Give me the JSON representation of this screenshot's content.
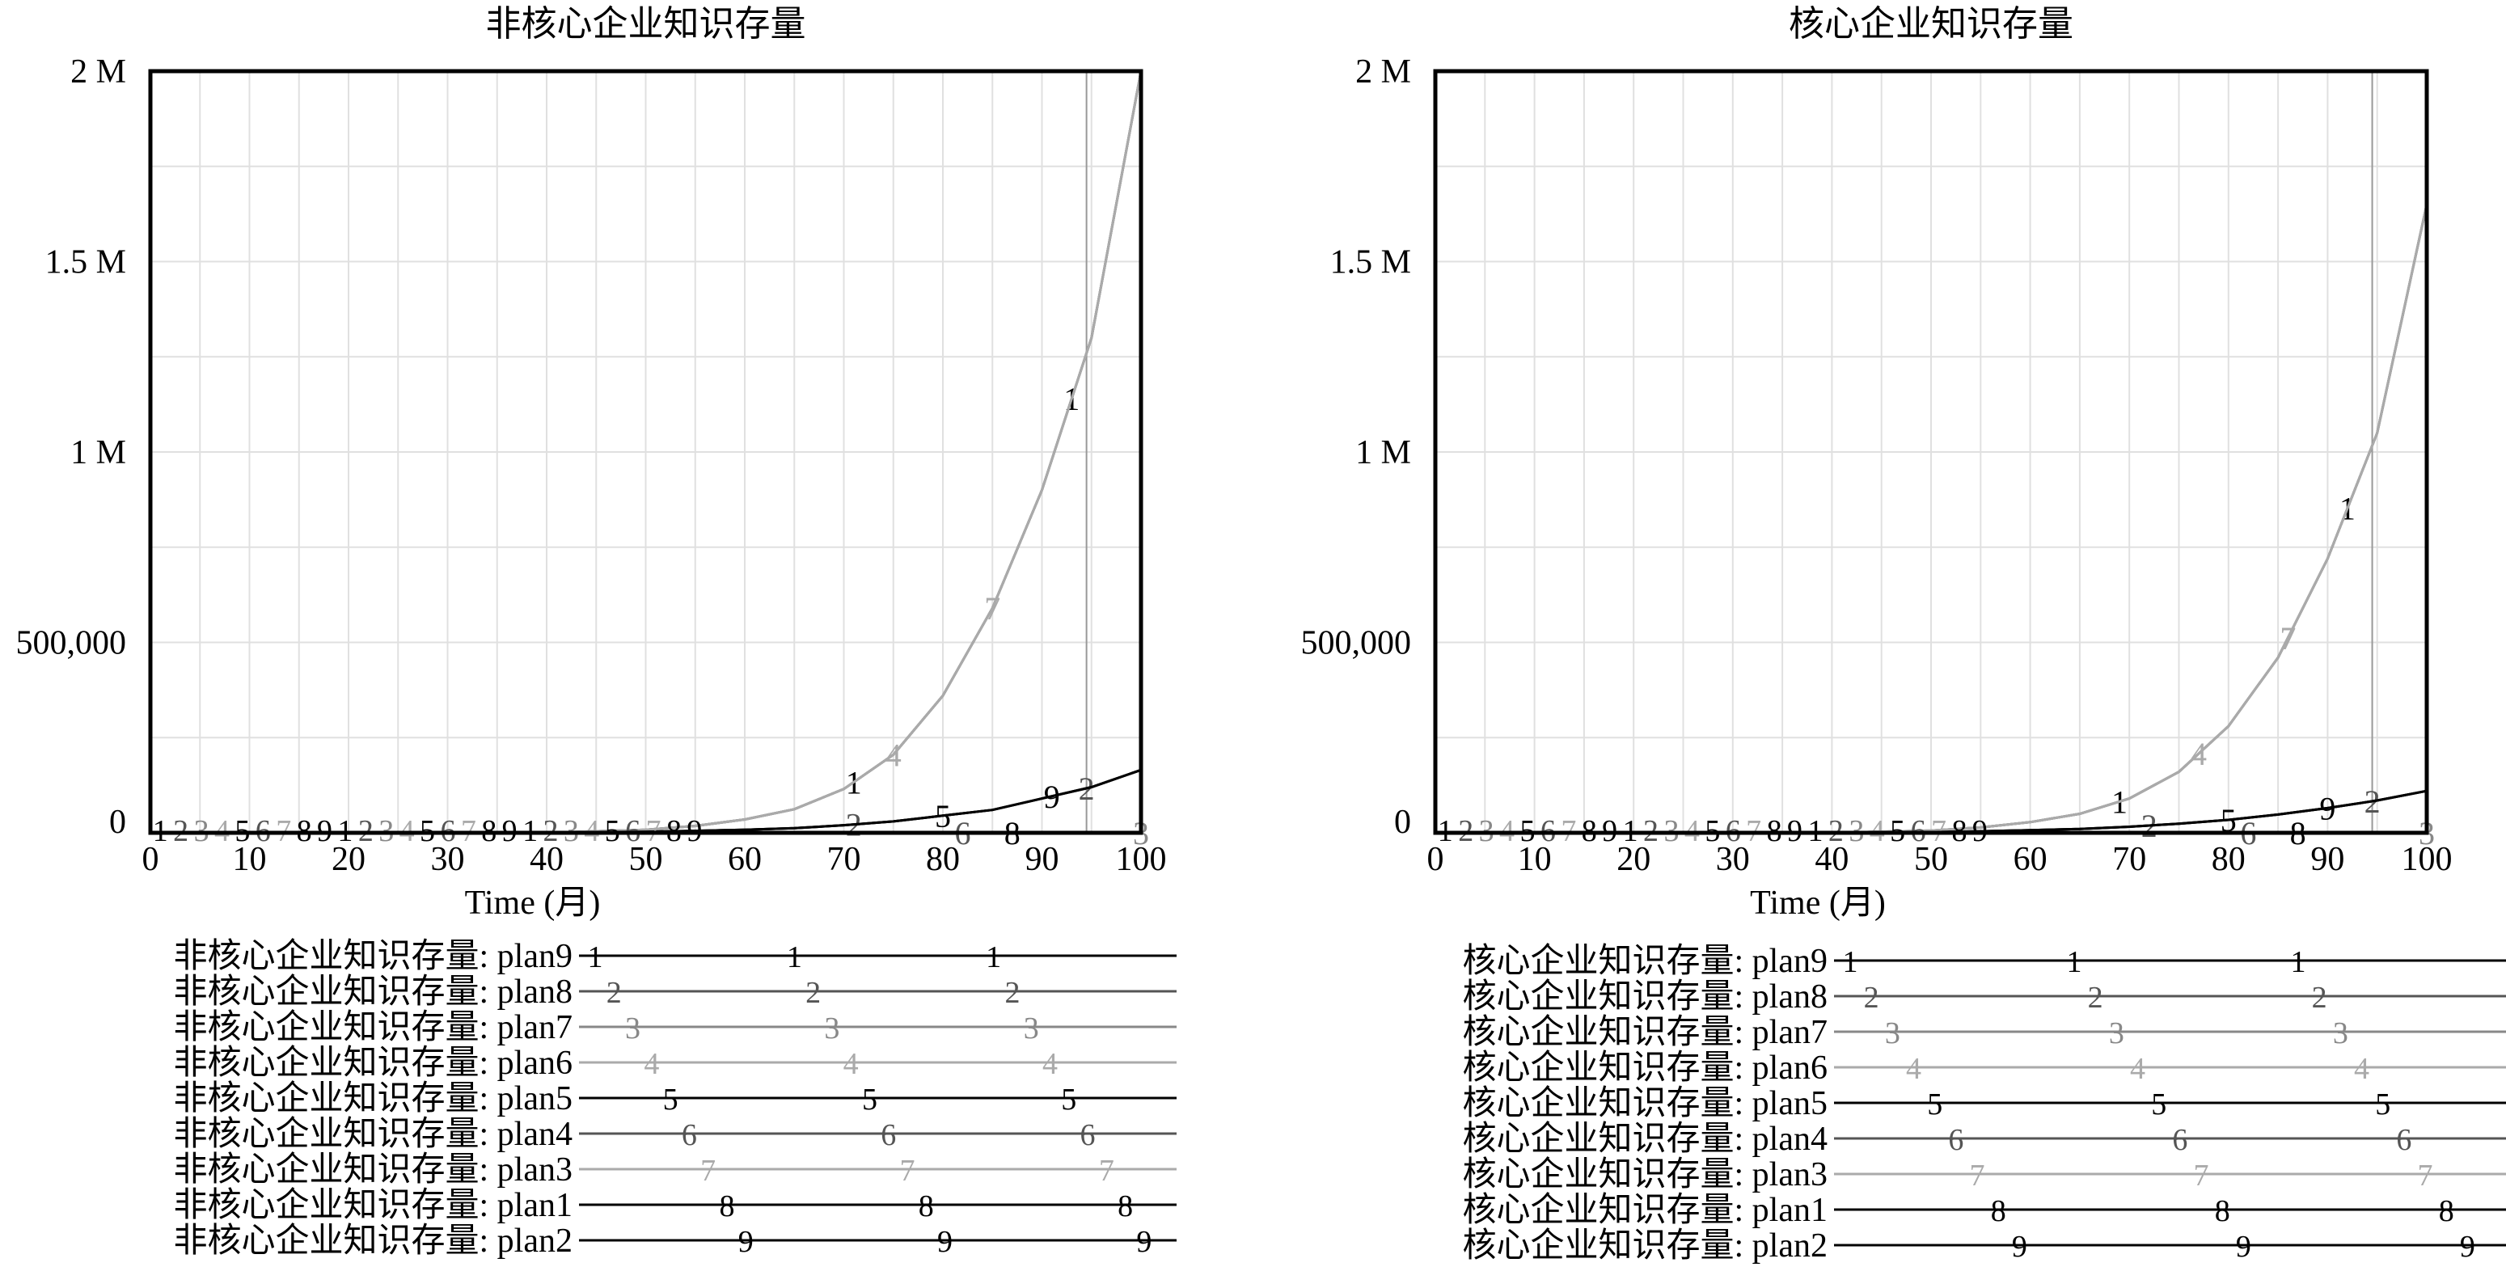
{
  "colors": {
    "black": "#000000",
    "dark_gray": "#555555",
    "mid_gray": "#888888",
    "light_gray": "#aaaaaa",
    "grid": "#e0e0e0",
    "marker_line": "#999999"
  },
  "chart_data": [
    {
      "type": "line",
      "title": "非核心企业知识存量",
      "xlabel": "Time (月)",
      "ylabel": "",
      "xlim": [
        0,
        100
      ],
      "ylim": [
        0,
        2000000
      ],
      "x_ticks": [
        0,
        10,
        20,
        30,
        40,
        50,
        60,
        70,
        80,
        90,
        100
      ],
      "y_ticks": [
        0,
        500000,
        1000000,
        1500000,
        2000000
      ],
      "y_tick_labels": [
        "0",
        "500,000",
        "1 M",
        "1.5 M",
        "2 M"
      ],
      "grid": true,
      "time_marker": 94.5,
      "x": [
        0,
        10,
        20,
        30,
        40,
        50,
        55,
        60,
        65,
        70,
        75,
        80,
        85,
        90,
        95,
        100
      ],
      "series": [
        {
          "marker": "1",
          "values": [
            0,
            0,
            0,
            0,
            0,
            8000,
            18000,
            35000,
            62000,
            115000,
            205000,
            360000,
            590000,
            900000,
            1300000,
            2000000
          ]
        },
        {
          "marker": "2",
          "values": [
            0,
            0,
            0,
            0,
            0,
            3000,
            5000,
            8000,
            12000,
            20000,
            30000,
            45000,
            60000,
            90000,
            120000,
            165000
          ]
        },
        {
          "marker": "3",
          "values": [
            0,
            0,
            0,
            0,
            0,
            0,
            0,
            0,
            0,
            0,
            0,
            0,
            0,
            0,
            0,
            0
          ]
        },
        {
          "marker": "4",
          "values": [
            0,
            0,
            0,
            0,
            0,
            8000,
            18000,
            35000,
            62000,
            115000,
            205000,
            360000,
            590000,
            900000,
            1300000,
            2000000
          ]
        },
        {
          "marker": "5",
          "values": [
            0,
            0,
            0,
            0,
            0,
            3000,
            5000,
            8000,
            12000,
            20000,
            30000,
            45000,
            60000,
            90000,
            120000,
            165000
          ]
        },
        {
          "marker": "6",
          "values": [
            0,
            0,
            0,
            0,
            0,
            0,
            0,
            0,
            0,
            0,
            0,
            0,
            0,
            0,
            0,
            0
          ]
        },
        {
          "marker": "7",
          "values": [
            0,
            0,
            0,
            0,
            0,
            8000,
            18000,
            35000,
            62000,
            115000,
            205000,
            360000,
            590000,
            900000,
            1300000,
            2000000
          ]
        },
        {
          "marker": "8",
          "values": [
            0,
            0,
            0,
            0,
            0,
            0,
            0,
            0,
            0,
            0,
            0,
            0,
            0,
            0,
            0,
            0
          ]
        },
        {
          "marker": "9",
          "values": [
            0,
            0,
            0,
            0,
            0,
            3000,
            5000,
            8000,
            12000,
            20000,
            30000,
            45000,
            60000,
            90000,
            120000,
            165000
          ]
        }
      ],
      "legend": [
        {
          "label": "非核心企业知识存量: plan9",
          "marker": "1",
          "color": "#000000"
        },
        {
          "label": "非核心企业知识存量: plan8",
          "marker": "2",
          "color": "#555555"
        },
        {
          "label": "非核心企业知识存量: plan7",
          "marker": "3",
          "color": "#888888"
        },
        {
          "label": "非核心企业知识存量: plan6",
          "marker": "4",
          "color": "#aaaaaa"
        },
        {
          "label": "非核心企业知识存量: plan5",
          "marker": "5",
          "color": "#000000"
        },
        {
          "label": "非核心企业知识存量: plan4",
          "marker": "6",
          "color": "#555555"
        },
        {
          "label": "非核心企业知识存量: plan3",
          "marker": "7",
          "color": "#aaaaaa"
        },
        {
          "label": "非核心企业知识存量: plan1",
          "marker": "8",
          "color": "#000000"
        },
        {
          "label": "非核心企业知识存量: plan2",
          "marker": "9",
          "color": "#000000"
        }
      ]
    },
    {
      "type": "line",
      "title": "核心企业知识存量",
      "xlabel": "Time (月)",
      "ylabel": "",
      "xlim": [
        0,
        100
      ],
      "ylim": [
        0,
        2000000
      ],
      "x_ticks": [
        0,
        10,
        20,
        30,
        40,
        50,
        60,
        70,
        80,
        90,
        100
      ],
      "y_ticks": [
        0,
        500000,
        1000000,
        1500000,
        2000000
      ],
      "y_tick_labels": [
        "0",
        "500,000",
        "1 M",
        "1.5 M",
        "2 M"
      ],
      "grid": true,
      "time_marker": 94.5,
      "x": [
        0,
        10,
        20,
        30,
        40,
        50,
        55,
        60,
        65,
        70,
        75,
        80,
        85,
        90,
        95,
        100
      ],
      "series": [
        {
          "marker": "1",
          "values": [
            0,
            0,
            0,
            0,
            0,
            6000,
            14000,
            28000,
            50000,
            90000,
            160000,
            280000,
            460000,
            720000,
            1050000,
            1650000
          ]
        },
        {
          "marker": "2",
          "values": [
            0,
            0,
            0,
            0,
            0,
            2000,
            4000,
            7000,
            10000,
            16000,
            24000,
            34000,
            48000,
            65000,
            85000,
            110000
          ]
        },
        {
          "marker": "3",
          "values": [
            0,
            0,
            0,
            0,
            0,
            0,
            0,
            0,
            0,
            0,
            0,
            0,
            0,
            0,
            0,
            0
          ]
        },
        {
          "marker": "4",
          "values": [
            0,
            0,
            0,
            0,
            0,
            6000,
            14000,
            28000,
            50000,
            90000,
            160000,
            280000,
            460000,
            720000,
            1050000,
            1650000
          ]
        },
        {
          "marker": "5",
          "values": [
            0,
            0,
            0,
            0,
            0,
            2000,
            4000,
            7000,
            10000,
            16000,
            24000,
            34000,
            48000,
            65000,
            85000,
            110000
          ]
        },
        {
          "marker": "6",
          "values": [
            0,
            0,
            0,
            0,
            0,
            0,
            0,
            0,
            0,
            0,
            0,
            0,
            0,
            0,
            0,
            0
          ]
        },
        {
          "marker": "7",
          "values": [
            0,
            0,
            0,
            0,
            0,
            6000,
            14000,
            28000,
            50000,
            90000,
            160000,
            280000,
            460000,
            720000,
            1050000,
            1650000
          ]
        },
        {
          "marker": "8",
          "values": [
            0,
            0,
            0,
            0,
            0,
            0,
            0,
            0,
            0,
            0,
            0,
            0,
            0,
            0,
            0,
            0
          ]
        },
        {
          "marker": "9",
          "values": [
            0,
            0,
            0,
            0,
            0,
            2000,
            4000,
            7000,
            10000,
            16000,
            24000,
            34000,
            48000,
            65000,
            85000,
            110000
          ]
        }
      ],
      "legend": [
        {
          "label": "核心企业知识存量: plan9",
          "marker": "1",
          "color": "#000000"
        },
        {
          "label": "核心企业知识存量: plan8",
          "marker": "2",
          "color": "#555555"
        },
        {
          "label": "核心企业知识存量: plan7",
          "marker": "3",
          "color": "#888888"
        },
        {
          "label": "核心企业知识存量: plan6",
          "marker": "4",
          "color": "#aaaaaa"
        },
        {
          "label": "核心企业知识存量: plan5",
          "marker": "5",
          "color": "#000000"
        },
        {
          "label": "核心企业知识存量: plan4",
          "marker": "6",
          "color": "#555555"
        },
        {
          "label": "核心企业知识存量: plan3",
          "marker": "7",
          "color": "#aaaaaa"
        },
        {
          "label": "核心企业知识存量: plan1",
          "marker": "8",
          "color": "#000000"
        },
        {
          "label": "核心企业知识存量: plan2",
          "marker": "9",
          "color": "#000000"
        }
      ]
    }
  ]
}
